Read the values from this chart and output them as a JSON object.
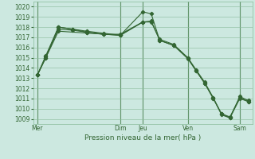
{
  "bg_color": "#cce8e0",
  "grid_color": "#88bb99",
  "line_color": "#336633",
  "title": "Pression niveau de la mer( hPa )",
  "ylim": [
    1008.5,
    1020.5
  ],
  "yticks": [
    1009,
    1010,
    1011,
    1012,
    1013,
    1014,
    1015,
    1016,
    1017,
    1018,
    1019,
    1020
  ],
  "xlim": [
    0,
    156
  ],
  "x_day_labels": [
    "Mer",
    "Dim",
    "Jeu",
    "Ven",
    "Sam"
  ],
  "x_day_positions": [
    3,
    62,
    78,
    110,
    147
  ],
  "vline_positions": [
    3,
    62,
    78,
    110,
    147
  ],
  "lines": [
    {
      "x": [
        3,
        9,
        18,
        62,
        78,
        84,
        90,
        100,
        110,
        116,
        122,
        128,
        134,
        140,
        147,
        153
      ],
      "y": [
        1013.3,
        1015.0,
        1017.6,
        1017.2,
        1019.5,
        1019.3,
        1016.7,
        1016.2,
        1014.9,
        1013.7,
        1012.5,
        1011.1,
        1009.4,
        1009.1,
        1011.0,
        1010.7
      ]
    },
    {
      "x": [
        3,
        9,
        18,
        28,
        38,
        50,
        62,
        78
      ],
      "y": [
        1013.3,
        1015.0,
        1018.0,
        1017.8,
        1017.5,
        1017.3,
        1017.2,
        1018.5
      ]
    },
    {
      "x": [
        3,
        9,
        18,
        28,
        38,
        50,
        62,
        78,
        84,
        90,
        100,
        110,
        116,
        122,
        128,
        134,
        140,
        147,
        153
      ],
      "y": [
        1013.3,
        1015.2,
        1018.0,
        1017.8,
        1017.6,
        1017.4,
        1017.2,
        1018.5,
        1018.6,
        1016.7,
        1016.2,
        1015.0,
        1013.7,
        1012.5,
        1011.0,
        1009.5,
        1009.1,
        1011.2,
        1010.8
      ]
    },
    {
      "x": [
        3,
        9,
        18,
        28,
        38,
        50,
        62,
        78,
        84,
        90,
        100,
        110,
        116,
        122,
        128,
        134,
        140,
        147,
        153
      ],
      "y": [
        1013.3,
        1015.1,
        1017.8,
        1017.7,
        1017.5,
        1017.3,
        1017.3,
        1018.5,
        1018.5,
        1016.8,
        1016.3,
        1015.0,
        1013.8,
        1012.6,
        1011.1,
        1009.5,
        1009.2,
        1011.1,
        1010.7
      ]
    }
  ]
}
